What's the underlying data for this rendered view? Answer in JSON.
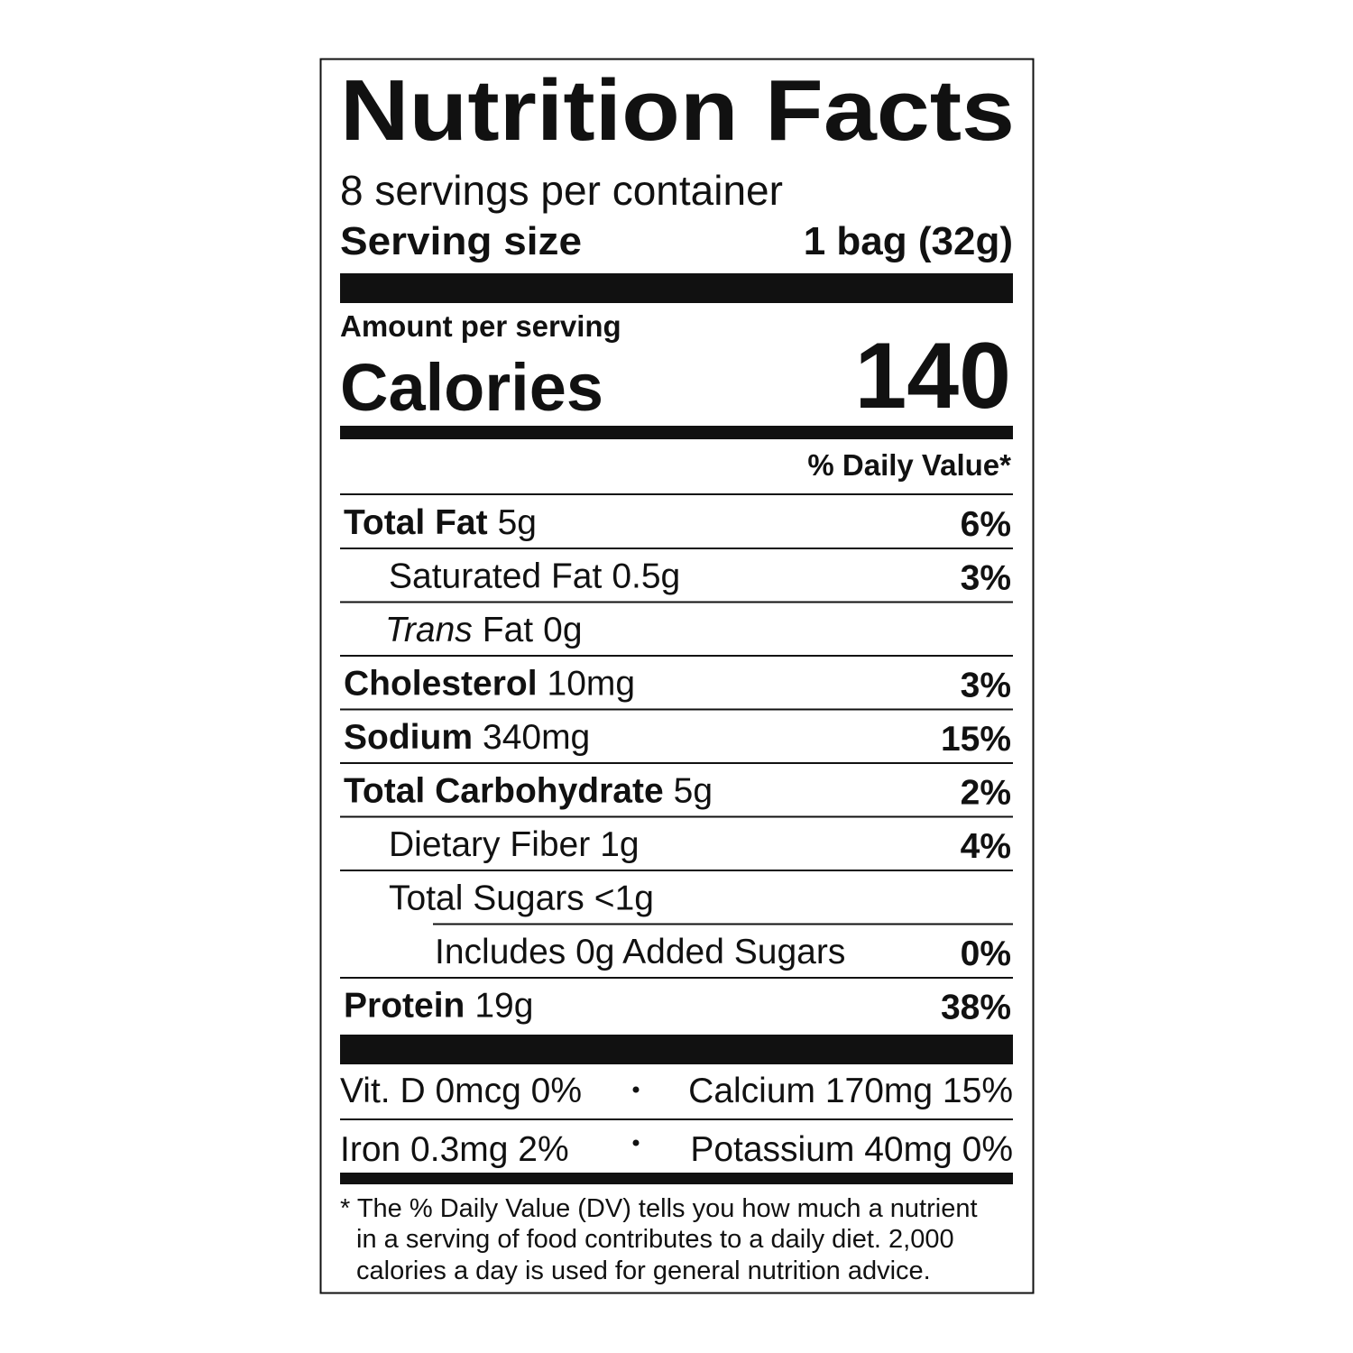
{
  "title": "Nutrition Facts",
  "servings": "8 servings per container",
  "serving_size": {
    "label": "Serving size",
    "value": "1 bag (32g)"
  },
  "amount_per_serving": "Amount per serving",
  "calories": {
    "label": "Calories",
    "value": "140"
  },
  "daily_value_header": "% Daily Value*",
  "nutrients": [
    {
      "name": "Total Fat",
      "amount": "5g",
      "dv": "6%"
    },
    {
      "name": "Saturated Fat",
      "amount": "0.5g",
      "dv": "3%"
    },
    {
      "name_italic": "Trans",
      "name": "Fat",
      "amount": "0g"
    },
    {
      "name": "Cholesterol",
      "amount": "10mg",
      "dv": "3%"
    },
    {
      "name": "Sodium",
      "amount": "340mg",
      "dv": "15%"
    },
    {
      "name": "Total Carbohydrate",
      "amount": "5g",
      "dv": "2%"
    },
    {
      "name": "Dietary Fiber",
      "amount": "1g",
      "dv": "4%"
    },
    {
      "name": "Total Sugars",
      "amount": "<1g"
    },
    {
      "name": "Includes 0g Added Sugars",
      "dv": "0%"
    },
    {
      "name": "Protein",
      "amount": "19g",
      "dv": "38%"
    }
  ],
  "vitamins": [
    [
      "Vit. D 0mcg 0%",
      "Calcium 170mg 15%"
    ],
    [
      "Iron 0.3mg 2%",
      "Potassium 40mg 0%"
    ]
  ],
  "footnote": [
    "* The % Daily Value (DV) tells you how much a nutrient",
    "in a serving of food contributes to a daily diet. 2,000",
    "calories a day is used for general nutrition advice."
  ]
}
